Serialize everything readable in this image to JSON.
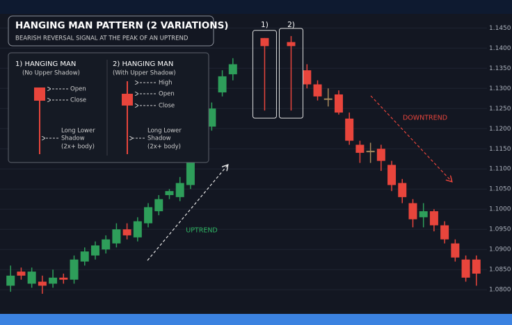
{
  "chart_data": {
    "type": "candlestick",
    "title": "HANGING MAN PATTERN (2 VARIATIONS)",
    "subtitle": "BEARISH REVERSAL SIGNAL AT THE PEAK OF AN UPTREND",
    "x": [
      0,
      1,
      2,
      3,
      4,
      5,
      6,
      7,
      8,
      9,
      10,
      11,
      12,
      13,
      14,
      15,
      16,
      17,
      18,
      19,
      20,
      21,
      24,
      26.5,
      28,
      29,
      30,
      31,
      32,
      33,
      34,
      35,
      36,
      37,
      38,
      39,
      40,
      41,
      42,
      43,
      44
    ],
    "open": [
      1.081,
      1.0845,
      1.0815,
      1.082,
      1.0815,
      1.083,
      1.0825,
      1.087,
      1.0885,
      1.09,
      1.0915,
      1.095,
      1.093,
      1.0965,
      1.0995,
      1.1035,
      1.103,
      1.106,
      1.114,
      1.1205,
      1.129,
      1.1335,
      1.1425,
      1.1415,
      1.1345,
      1.131,
      1.1275,
      1.1285,
      1.1225,
      1.116,
      1.1145,
      1.115,
      1.111,
      1.1065,
      1.1015,
      1.098,
      1.0995,
      1.096,
      1.0915,
      1.0875,
      1.0875
    ],
    "high": [
      1.086,
      1.0855,
      1.0855,
      1.0835,
      1.085,
      1.084,
      1.0885,
      1.0905,
      1.092,
      1.0935,
      1.0965,
      1.0965,
      1.098,
      1.1015,
      1.1035,
      1.105,
      1.108,
      1.115,
      1.123,
      1.1265,
      1.1345,
      1.1375,
      1.1425,
      1.143,
      1.136,
      1.132,
      1.13,
      1.1295,
      1.124,
      1.117,
      1.1165,
      1.116,
      1.112,
      1.1075,
      1.1025,
      1.1015,
      1.1,
      1.097,
      1.0925,
      1.0885,
      1.0885
    ],
    "low": [
      1.0795,
      1.0825,
      1.0805,
      1.079,
      1.0805,
      1.0815,
      1.0815,
      1.086,
      1.0875,
      1.089,
      1.0905,
      1.0925,
      1.092,
      1.0955,
      1.0985,
      1.1025,
      1.102,
      1.105,
      1.113,
      1.1195,
      1.128,
      1.132,
      1.1245,
      1.1245,
      1.13,
      1.127,
      1.1255,
      1.1235,
      1.116,
      1.1115,
      1.1115,
      1.1095,
      1.1045,
      1.1015,
      1.0955,
      1.0955,
      1.0945,
      1.0915,
      1.087,
      1.082,
      1.081
    ],
    "close": [
      1.0835,
      1.0835,
      1.0845,
      1.081,
      1.083,
      1.0825,
      1.0875,
      1.0895,
      1.091,
      1.0925,
      1.095,
      1.0935,
      1.097,
      1.1005,
      1.1025,
      1.1045,
      1.1065,
      1.114,
      1.1215,
      1.125,
      1.133,
      1.136,
      1.1405,
      1.1405,
      1.131,
      1.128,
      1.1275,
      1.124,
      1.117,
      1.114,
      1.1145,
      1.112,
      1.106,
      1.103,
      1.0975,
      1.0995,
      1.096,
      1.0925,
      1.088,
      1.083,
      1.084
    ],
    "up_color": "#2e9e5a",
    "down_color": "#e8453c",
    "doji_color": "#a88a5c",
    "xlim": [
      -1,
      45
    ],
    "ylim": [
      1.074,
      1.1485
    ],
    "yticks": [
      {
        "value": 1.145,
        "label": "1.1450"
      },
      {
        "value": 1.14,
        "label": "1.1400"
      },
      {
        "value": 1.135,
        "label": "1.1350"
      },
      {
        "value": 1.13,
        "label": "1.1300"
      },
      {
        "value": 1.125,
        "label": "1.1250"
      },
      {
        "value": 1.12,
        "label": "1.1200"
      },
      {
        "value": 1.115,
        "label": "1.1150"
      },
      {
        "value": 1.11,
        "label": "1.1100"
      },
      {
        "value": 1.105,
        "label": "1.1050"
      },
      {
        "value": 1.1,
        "label": "1.1000"
      },
      {
        "value": 1.095,
        "label": "1.0950"
      },
      {
        "value": 1.09,
        "label": "1.0900"
      },
      {
        "value": 1.085,
        "label": "1.0850"
      },
      {
        "value": 1.08,
        "label": "1.0800"
      }
    ],
    "grid": true,
    "highlights": [
      {
        "label": "1)",
        "index": 22
      },
      {
        "label": "2)",
        "index": 23
      }
    ],
    "uptrend_label": "UPTREND",
    "downtrend_label": "DOWNTREND",
    "pattern_key": [
      {
        "title": "1) HANGING MAN",
        "subtitle": "(No Upper Shadow)",
        "labels": [
          "Open",
          "Close"
        ],
        "shadow_lines": [
          "Long Lower",
          "Shadow",
          "(2x+ body)"
        ]
      },
      {
        "title": "2) HANGING MAN",
        "subtitle": "(With Upper Shadow)",
        "labels": [
          "High",
          "Open",
          "Close"
        ],
        "shadow_lines": [
          "Long Lower",
          "Shadow",
          "(2x+ body)"
        ]
      }
    ]
  }
}
